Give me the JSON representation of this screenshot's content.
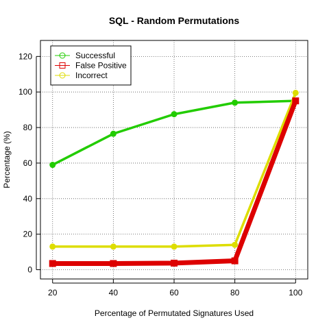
{
  "chart_data": {
    "type": "line",
    "title": "SQL - Random Permutations",
    "xlabel": "Percentage of Permutated Signatures Used",
    "ylabel": "Percentage (%)",
    "x": [
      20,
      40,
      60,
      80,
      100
    ],
    "xticks": [
      "20",
      "40",
      "60",
      "80",
      "100"
    ],
    "yticks": [
      "0",
      "20",
      "40",
      "60",
      "80",
      "100",
      "120"
    ],
    "xlim": [
      16,
      104
    ],
    "ylim": [
      -5.2,
      129
    ],
    "grid": true,
    "legend_position": "top-left",
    "series": [
      {
        "name": "Successful",
        "values": [
          59,
          76.5,
          87.5,
          94,
          95
        ],
        "color": "#22cc00",
        "marker": "circle"
      },
      {
        "name": "False Positive",
        "values": [
          3.5,
          3.5,
          3.7,
          5,
          95
        ],
        "color": "#dd0000",
        "marker": "square"
      },
      {
        "name": "Incorrect",
        "values": [
          13,
          13,
          13,
          14,
          99.5
        ],
        "color": "#dddd00",
        "marker": "circle"
      }
    ]
  }
}
